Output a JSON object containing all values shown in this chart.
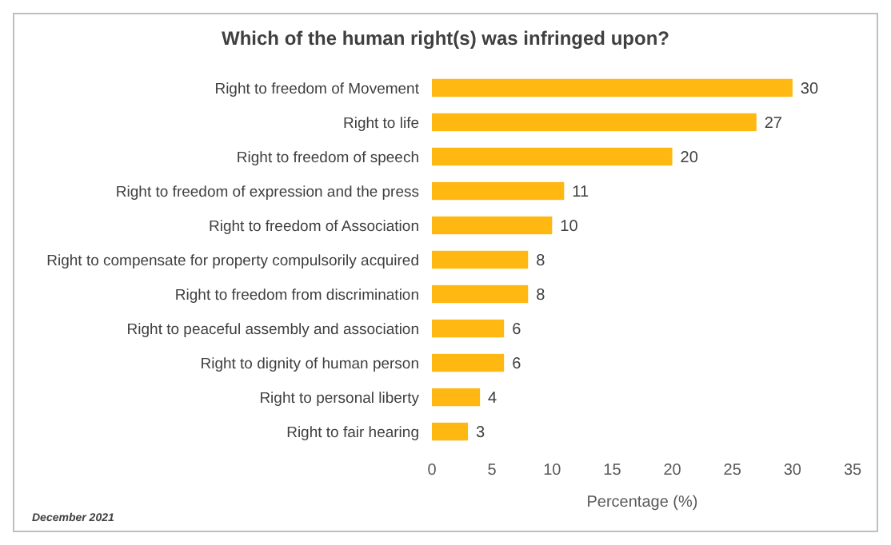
{
  "chart_data": {
    "type": "bar",
    "orientation": "horizontal",
    "title": "Which of the human right(s) was infringed upon?",
    "categories": [
      "Right to freedom of Movement",
      "Right to life",
      "Right to freedom of speech",
      "Right to freedom of expression and the press",
      "Right to freedom of Association",
      "Right to compensate for property compulsorily acquired",
      "Right to freedom from discrimination",
      "Right to peaceful assembly and association",
      "Right to dignity of human person",
      "Right to personal liberty",
      "Right to fair hearing"
    ],
    "values": [
      30,
      27,
      20,
      11,
      10,
      8,
      8,
      6,
      6,
      4,
      3
    ],
    "color": "#ffb711",
    "xlim": [
      0,
      35
    ],
    "xticks": [
      0,
      5,
      10,
      15,
      20,
      25,
      30,
      35
    ],
    "xlabel": "Percentage (%)",
    "data_labels": true,
    "grid": false,
    "annotations": [
      "December 2021"
    ]
  }
}
